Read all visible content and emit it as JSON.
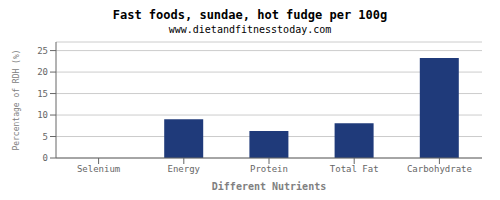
{
  "chart_data": {
    "type": "bar",
    "title": "Fast foods, sundae, hot fudge per 100g",
    "subtitle": "www.dietandfitnesstoday.com",
    "xlabel": "Different Nutrients",
    "ylabel": "Percentage of RDH (%)",
    "categories": [
      "Selenium",
      "Energy",
      "Protein",
      "Total Fat",
      "Carbohydrate"
    ],
    "values": [
      0.0,
      9.0,
      6.3,
      8.1,
      23.3
    ],
    "color": "#1f3a7a",
    "ylim": [
      0,
      27
    ],
    "yticks": [
      0,
      5,
      10,
      15,
      20,
      25
    ],
    "grid": true
  }
}
